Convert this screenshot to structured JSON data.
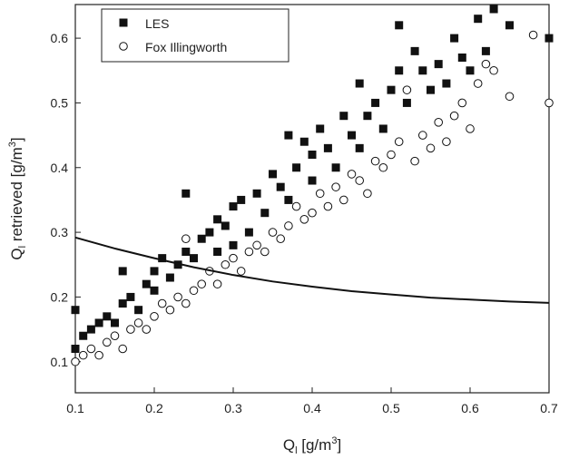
{
  "chart_data": {
    "type": "scatter",
    "x_label": {
      "main": "Q",
      "sub": "l",
      "rest": " [g/m",
      "sup": "3",
      "end": "]"
    },
    "y_label": {
      "main": "Q",
      "sub": "l",
      "rest": " retrieved [g/m",
      "sup": "3",
      "end": "]"
    },
    "xlim": [
      0.1,
      0.7
    ],
    "ylim": [
      0.052,
      0.652
    ],
    "xticks": [
      0.1,
      0.2,
      0.3,
      0.4,
      0.5,
      0.6,
      0.7
    ],
    "yticks": [
      0.1,
      0.2,
      0.3,
      0.4,
      0.5,
      0.6
    ],
    "legend": "top-left",
    "series": [
      {
        "name": "LES",
        "color": "#111111",
        "marker": "square",
        "x": [
          0.1,
          0.1,
          0.11,
          0.12,
          0.13,
          0.14,
          0.15,
          0.16,
          0.16,
          0.17,
          0.18,
          0.19,
          0.2,
          0.2,
          0.21,
          0.22,
          0.23,
          0.24,
          0.24,
          0.25,
          0.26,
          0.27,
          0.28,
          0.28,
          0.29,
          0.3,
          0.3,
          0.31,
          0.32,
          0.33,
          0.34,
          0.35,
          0.36,
          0.37,
          0.37,
          0.38,
          0.39,
          0.4,
          0.4,
          0.41,
          0.42,
          0.43,
          0.44,
          0.45,
          0.46,
          0.46,
          0.47,
          0.48,
          0.49,
          0.5,
          0.51,
          0.51,
          0.52,
          0.53,
          0.54,
          0.55,
          0.56,
          0.57,
          0.58,
          0.59,
          0.6,
          0.61,
          0.62,
          0.63,
          0.65,
          0.7
        ],
        "y": [
          0.12,
          0.18,
          0.14,
          0.15,
          0.16,
          0.17,
          0.16,
          0.24,
          0.19,
          0.2,
          0.18,
          0.22,
          0.21,
          0.24,
          0.26,
          0.23,
          0.25,
          0.36,
          0.27,
          0.26,
          0.29,
          0.3,
          0.27,
          0.32,
          0.31,
          0.34,
          0.28,
          0.35,
          0.3,
          0.36,
          0.33,
          0.39,
          0.37,
          0.45,
          0.35,
          0.4,
          0.44,
          0.38,
          0.42,
          0.46,
          0.43,
          0.4,
          0.48,
          0.45,
          0.53,
          0.43,
          0.48,
          0.5,
          0.46,
          0.52,
          0.62,
          0.55,
          0.5,
          0.58,
          0.55,
          0.52,
          0.56,
          0.53,
          0.6,
          0.57,
          0.55,
          0.63,
          0.58,
          0.645,
          0.62,
          0.6
        ]
      },
      {
        "name": "Fox Illingworth",
        "color": "#111111",
        "marker": "open-circle",
        "x": [
          0.1,
          0.11,
          0.12,
          0.13,
          0.14,
          0.15,
          0.16,
          0.17,
          0.18,
          0.19,
          0.2,
          0.21,
          0.22,
          0.23,
          0.24,
          0.24,
          0.25,
          0.26,
          0.27,
          0.28,
          0.29,
          0.3,
          0.31,
          0.32,
          0.33,
          0.34,
          0.35,
          0.36,
          0.37,
          0.38,
          0.39,
          0.4,
          0.41,
          0.42,
          0.43,
          0.44,
          0.45,
          0.46,
          0.47,
          0.48,
          0.49,
          0.5,
          0.51,
          0.52,
          0.53,
          0.54,
          0.55,
          0.56,
          0.57,
          0.58,
          0.59,
          0.6,
          0.61,
          0.62,
          0.63,
          0.65,
          0.68,
          0.7
        ],
        "y": [
          0.1,
          0.11,
          0.12,
          0.11,
          0.13,
          0.14,
          0.12,
          0.15,
          0.16,
          0.15,
          0.17,
          0.19,
          0.18,
          0.2,
          0.29,
          0.19,
          0.21,
          0.22,
          0.24,
          0.22,
          0.25,
          0.26,
          0.24,
          0.27,
          0.28,
          0.27,
          0.3,
          0.29,
          0.31,
          0.34,
          0.32,
          0.33,
          0.36,
          0.34,
          0.37,
          0.35,
          0.39,
          0.38,
          0.36,
          0.41,
          0.4,
          0.42,
          0.44,
          0.52,
          0.41,
          0.45,
          0.43,
          0.47,
          0.44,
          0.48,
          0.5,
          0.46,
          0.53,
          0.56,
          0.55,
          0.51,
          0.605,
          0.5
        ]
      }
    ],
    "curve": {
      "color": "#111111",
      "x": [
        0.1,
        0.15,
        0.2,
        0.25,
        0.3,
        0.35,
        0.4,
        0.45,
        0.5,
        0.55,
        0.6,
        0.65,
        0.7
      ],
      "y": [
        0.292,
        0.275,
        0.26,
        0.246,
        0.234,
        0.224,
        0.216,
        0.209,
        0.204,
        0.199,
        0.196,
        0.193,
        0.191
      ]
    }
  }
}
